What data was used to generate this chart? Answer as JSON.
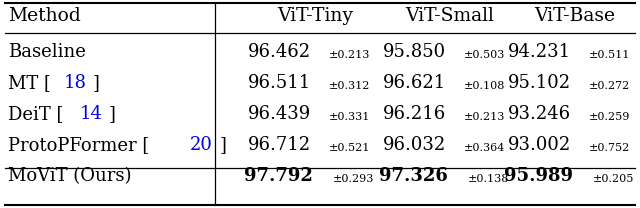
{
  "col_headers": [
    "Method",
    "ViT-Tiny",
    "ViT-Small",
    "ViT-Base"
  ],
  "rows": [
    {
      "method_parts": [
        {
          "text": "Baseline",
          "color": "black",
          "bold": false
        }
      ],
      "cells": [
        {
          "main": "96.462",
          "sub": "±0.213",
          "bold": false
        },
        {
          "main": "95.850",
          "sub": "±0.503",
          "bold": false
        },
        {
          "main": "94.231",
          "sub": "±0.511",
          "bold": false
        }
      ]
    },
    {
      "method_parts": [
        {
          "text": "MT [",
          "color": "black",
          "bold": false
        },
        {
          "text": "18",
          "color": "#0000ee",
          "bold": false
        },
        {
          "text": "]",
          "color": "black",
          "bold": false
        }
      ],
      "cells": [
        {
          "main": "96.511",
          "sub": "±0.312",
          "bold": false
        },
        {
          "main": "96.621",
          "sub": "±0.108",
          "bold": false
        },
        {
          "main": "95.102",
          "sub": "±0.272",
          "bold": false
        }
      ]
    },
    {
      "method_parts": [
        {
          "text": "DeiT [",
          "color": "black",
          "bold": false
        },
        {
          "text": "14",
          "color": "#0000ee",
          "bold": false
        },
        {
          "text": "]",
          "color": "black",
          "bold": false
        }
      ],
      "cells": [
        {
          "main": "96.439",
          "sub": "±0.331",
          "bold": false
        },
        {
          "main": "96.216",
          "sub": "±0.213",
          "bold": false
        },
        {
          "main": "93.246",
          "sub": "±0.259",
          "bold": false
        }
      ]
    },
    {
      "method_parts": [
        {
          "text": "ProtoPFormer [",
          "color": "black",
          "bold": false
        },
        {
          "text": "20",
          "color": "#0000ee",
          "bold": false
        },
        {
          "text": "]",
          "color": "black",
          "bold": false
        }
      ],
      "cells": [
        {
          "main": "96.712",
          "sub": "±0.521",
          "bold": false
        },
        {
          "main": "96.032",
          "sub": "±0.364",
          "bold": false
        },
        {
          "main": "93.002",
          "sub": "±0.752",
          "bold": false
        }
      ]
    },
    {
      "method_parts": [
        {
          "text": "MoViT (Ours)",
          "color": "black",
          "bold": false
        }
      ],
      "cells": [
        {
          "main": "97.792",
          "sub": "±0.293",
          "bold": true
        },
        {
          "main": "97.326",
          "sub": "±0.138",
          "bold": true
        },
        {
          "main": "95.989",
          "sub": "±0.205",
          "bold": true
        }
      ]
    }
  ],
  "bg_color": "#ffffff",
  "header_fs": 13.5,
  "body_fs": 13.0,
  "sub_fs": 8.0,
  "fig_width": 6.4,
  "fig_height": 2.08,
  "dpi": 100
}
